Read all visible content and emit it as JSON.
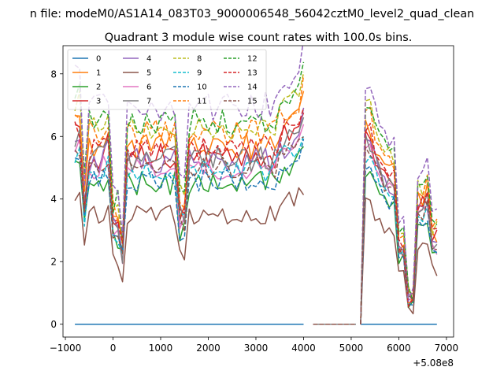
{
  "chart_data": {
    "type": "line",
    "suptitle": "n file: modeM0/AS1A14_083T03_9000006548_56042cztM0_level2_quad_clean",
    "title": "Quadrant 3 module wise count rates with 100.0s bins.",
    "xlabel": "",
    "ylabel": "",
    "offset_text": "+5.08e8",
    "xlim": [
      -1050,
      7150
    ],
    "ylim": [
      -0.41,
      8.9
    ],
    "x_ticks": [
      -1000,
      0,
      1000,
      2000,
      3000,
      4000,
      5000,
      6000,
      7000
    ],
    "x_tick_labels": [
      "−1000",
      "0",
      "1000",
      "2000",
      "3000",
      "4000",
      "5000",
      "6000",
      "7000"
    ],
    "y_ticks": [
      0,
      2,
      4,
      6,
      8
    ],
    "y_tick_labels": [
      "0",
      "2",
      "4",
      "6",
      "8"
    ],
    "legend_position": "upper-left",
    "legend_columns": 4,
    "grid": false,
    "segments": [
      {
        "start": -800,
        "step": 100,
        "count": 49
      },
      {
        "start": 4200,
        "step": 100,
        "count": 10
      },
      {
        "start": 5200,
        "step": 100,
        "count": 17
      }
    ],
    "series": [
      {
        "name": "0",
        "color": "#1f77b4",
        "dash": "solid",
        "base": 0.0,
        "amp": 0.0,
        "seed": 1
      },
      {
        "name": "1",
        "color": "#ff7f0e",
        "dash": "solid",
        "base": 5.7,
        "amp": 0.9,
        "seed": 2
      },
      {
        "name": "2",
        "color": "#2ca02c",
        "dash": "solid",
        "base": 4.5,
        "amp": 0.8,
        "seed": 3
      },
      {
        "name": "3",
        "color": "#d62728",
        "dash": "solid",
        "base": 5.4,
        "amp": 0.9,
        "seed": 4
      },
      {
        "name": "4",
        "color": "#9467bd",
        "dash": "solid",
        "base": 5.2,
        "amp": 0.9,
        "seed": 5
      },
      {
        "name": "5",
        "color": "#8c564b",
        "dash": "solid",
        "base": 3.5,
        "amp": 0.6,
        "seed": 6
      },
      {
        "name": "6",
        "color": "#e377c2",
        "dash": "solid",
        "base": 5.0,
        "amp": 0.8,
        "seed": 7
      },
      {
        "name": "7",
        "color": "#7f7f7f",
        "dash": "solid",
        "base": 5.3,
        "amp": 0.9,
        "seed": 8
      },
      {
        "name": "8",
        "color": "#bcbd22",
        "dash": "dashed",
        "base": 6.3,
        "amp": 0.9,
        "seed": 9
      },
      {
        "name": "9",
        "color": "#17becf",
        "dash": "dashed",
        "base": 4.9,
        "amp": 0.7,
        "seed": 10
      },
      {
        "name": "10",
        "color": "#1f77b4",
        "dash": "dashed",
        "base": 4.6,
        "amp": 0.7,
        "seed": 11
      },
      {
        "name": "11",
        "color": "#ff7f0e",
        "dash": "dashed",
        "base": 6.1,
        "amp": 0.9,
        "seed": 12
      },
      {
        "name": "12",
        "color": "#2ca02c",
        "dash": "dashed",
        "base": 6.5,
        "amp": 0.9,
        "seed": 13
      },
      {
        "name": "13",
        "color": "#d62728",
        "dash": "dashed",
        "base": 5.6,
        "amp": 0.8,
        "seed": 14
      },
      {
        "name": "14",
        "color": "#9467bd",
        "dash": "dashed",
        "base": 7.0,
        "amp": 1.0,
        "seed": 15
      },
      {
        "name": "15",
        "color": "#8c564b",
        "dash": "dashed",
        "base": 5.0,
        "amp": 0.7,
        "seed": 16
      }
    ]
  }
}
